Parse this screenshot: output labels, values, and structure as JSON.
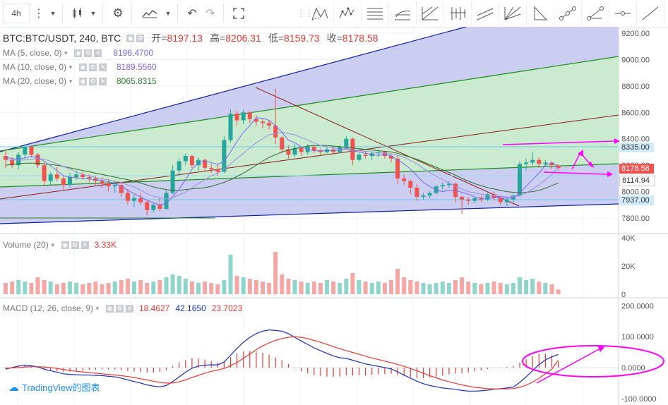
{
  "toolbar": {
    "interval": "4h",
    "undo_icon": "undo-icon",
    "redo_icon": "redo-icon"
  },
  "drawing_tools": [
    "pattern-icon",
    "elliott-icon",
    "fib-lines-icon",
    "fib-fan-icon",
    "pitchfork-icon",
    "bars-icon",
    "parallel-channel-icon",
    "gann-fan-icon",
    "triangle-icon",
    "path-icon",
    "trend-angle-icon",
    "horizontal-ray-icon",
    "trend-line-icon"
  ],
  "header": {
    "symbol": "BTC:BTC/USDT, 240, BTC",
    "open_label": "开=",
    "open": "8197.13",
    "high_label": "高=",
    "high": "8206.31",
    "low_label": "低=",
    "low": "8159.73",
    "close_label": "收=",
    "close": "8178.58"
  },
  "indicators": {
    "ma5": {
      "label": "MA (5, close, 0)",
      "value": "8196.4700",
      "color": "#7b68ee"
    },
    "ma10": {
      "label": "MA (10, close, 0)",
      "value": "8189.5560",
      "color": "#7b68ee"
    },
    "ma20": {
      "label": "MA (20, close, 0)",
      "value": "8065.8315",
      "color": "#2e7d32"
    },
    "volume": {
      "label": "Volume (20)",
      "value": "3.33K",
      "color": "#e53935"
    },
    "macd": {
      "label": "MACD (12, 26, close, 9)",
      "hist": "18.4627",
      "macd": "42.1650",
      "signal": "23.7023"
    }
  },
  "price_tags": {
    "upper": "8335.00",
    "current": "8178.58",
    "middle": "8114.94",
    "lower": "7937.00"
  },
  "colors": {
    "up": "#26a69a",
    "down": "#ef5350",
    "channel_blue": "#0d1fa0",
    "channel_green": "#1b8a1b",
    "trend_brown": "#8b1a1a",
    "annotation": "#ff00ff",
    "tag_upper": "#d0ecf8",
    "tag_current": "#ef5350"
  },
  "watermark": "TradingView的图表",
  "chart_data": [
    {
      "type": "candlestick",
      "title": "BTC:BTC/USDT, 240, BTC",
      "ylim": [
        7720,
        9260
      ],
      "y_ticks": [
        7800,
        8000,
        8200,
        8400,
        8600,
        8800,
        9000,
        9200
      ],
      "candles": [
        [
          8270,
          8320,
          8180,
          8240
        ],
        [
          8240,
          8260,
          8180,
          8200
        ],
        [
          8200,
          8300,
          8170,
          8280
        ],
        [
          8280,
          8360,
          8250,
          8340
        ],
        [
          8340,
          8350,
          8260,
          8280
        ],
        [
          8280,
          8290,
          8180,
          8200
        ],
        [
          8200,
          8220,
          8050,
          8080
        ],
        [
          8080,
          8150,
          8050,
          8130
        ],
        [
          8130,
          8190,
          8080,
          8100
        ],
        [
          8100,
          8120,
          8010,
          8050
        ],
        [
          8050,
          8140,
          8030,
          8110
        ],
        [
          8110,
          8160,
          8090,
          8130
        ],
        [
          8130,
          8150,
          8090,
          8110
        ],
        [
          8110,
          8130,
          8070,
          8100
        ],
        [
          8100,
          8120,
          8050,
          8080
        ],
        [
          8080,
          8110,
          8030,
          8060
        ],
        [
          8060,
          8090,
          8000,
          8040
        ],
        [
          8040,
          8080,
          7990,
          8050
        ],
        [
          8050,
          8070,
          7960,
          7990
        ],
        [
          7990,
          8020,
          7900,
          7930
        ],
        [
          7930,
          7980,
          7880,
          7950
        ],
        [
          7950,
          7990,
          7900,
          7920
        ],
        [
          7920,
          7940,
          7820,
          7860
        ],
        [
          7860,
          7920,
          7840,
          7900
        ],
        [
          7900,
          7950,
          7850,
          7870
        ],
        [
          7870,
          8010,
          7860,
          7990
        ],
        [
          7990,
          8200,
          7980,
          8160
        ],
        [
          8160,
          8250,
          8120,
          8230
        ],
        [
          8230,
          8290,
          8200,
          8270
        ],
        [
          8270,
          8280,
          8180,
          8200
        ],
        [
          8200,
          8260,
          8160,
          8240
        ],
        [
          8240,
          8250,
          8160,
          8180
        ],
        [
          8180,
          8210,
          8140,
          8170
        ],
        [
          8170,
          8200,
          8120,
          8150
        ],
        [
          8150,
          8420,
          8140,
          8390
        ],
        [
          8390,
          8620,
          8370,
          8590
        ],
        [
          8590,
          8610,
          8500,
          8540
        ],
        [
          8540,
          8620,
          8510,
          8600
        ],
        [
          8600,
          8610,
          8520,
          8550
        ],
        [
          8550,
          8580,
          8500,
          8530
        ],
        [
          8530,
          8550,
          8480,
          8520
        ],
        [
          8520,
          8540,
          8470,
          8500
        ],
        [
          8500,
          8780,
          8360,
          8410
        ],
        [
          8410,
          8420,
          8290,
          8320
        ],
        [
          8320,
          8350,
          8250,
          8280
        ],
        [
          8280,
          8360,
          8260,
          8330
        ],
        [
          8330,
          8340,
          8270,
          8300
        ],
        [
          8300,
          8360,
          8280,
          8340
        ],
        [
          8340,
          8350,
          8290,
          8310
        ],
        [
          8310,
          8330,
          8280,
          8300
        ],
        [
          8300,
          8340,
          8290,
          8320
        ],
        [
          8320,
          8340,
          8290,
          8300
        ],
        [
          8300,
          8350,
          8290,
          8340
        ],
        [
          8340,
          8420,
          8320,
          8400
        ],
        [
          8400,
          8410,
          8200,
          8240
        ],
        [
          8240,
          8300,
          8230,
          8280
        ],
        [
          8280,
          8310,
          8250,
          8270
        ],
        [
          8270,
          8300,
          8240,
          8290
        ],
        [
          8290,
          8320,
          8260,
          8300
        ],
        [
          8300,
          8310,
          8250,
          8270
        ],
        [
          8270,
          8290,
          8220,
          8250
        ],
        [
          8250,
          8280,
          8060,
          8100
        ],
        [
          8100,
          8130,
          8050,
          8080
        ],
        [
          8080,
          8090,
          7980,
          8030
        ],
        [
          8030,
          8060,
          7930,
          7960
        ],
        [
          7960,
          7990,
          7940,
          7970
        ],
        [
          7970,
          8000,
          7950,
          7990
        ],
        [
          7990,
          8050,
          7980,
          8040
        ],
        [
          8040,
          8070,
          8010,
          8050
        ],
        [
          8050,
          8080,
          8030,
          8060
        ],
        [
          8060,
          8070,
          7920,
          7960
        ],
        [
          7960,
          7970,
          7830,
          7940
        ],
        [
          7940,
          7960,
          7900,
          7930
        ],
        [
          7930,
          7960,
          7910,
          7950
        ],
        [
          7950,
          7970,
          7920,
          7940
        ],
        [
          7940,
          7990,
          7930,
          7980
        ],
        [
          7980,
          8000,
          7930,
          7950
        ],
        [
          7950,
          7970,
          7900,
          7920
        ],
        [
          7920,
          7960,
          7890,
          7940
        ],
        [
          7940,
          7980,
          7920,
          7970
        ],
        [
          7970,
          8230,
          7960,
          8210
        ],
        [
          8210,
          8250,
          8160,
          8220
        ],
        [
          8220,
          8300,
          8200,
          8240
        ],
        [
          8240,
          8260,
          8180,
          8210
        ],
        [
          8210,
          8240,
          8190,
          8220
        ],
        [
          8220,
          8230,
          8170,
          8200
        ],
        [
          8197.13,
          8206.31,
          8159.73,
          8178.58
        ]
      ],
      "ma5": [
        8260,
        8250,
        8245,
        8255,
        8265,
        8260,
        8230,
        8195,
        8160,
        8120,
        8110,
        8105,
        8100,
        8095,
        8090,
        8085,
        8075,
        8060,
        8040,
        8010,
        7985,
        7960,
        7935,
        7915,
        7900,
        7910,
        7960,
        8020,
        8090,
        8170,
        8220,
        8230,
        8220,
        8205,
        8230,
        8300,
        8380,
        8450,
        8500,
        8560,
        8555,
        8540,
        8500,
        8450,
        8390,
        8370,
        8340,
        8320,
        8310,
        8310,
        8310,
        8310,
        8315,
        8330,
        8310,
        8300,
        8290,
        8280,
        8275,
        8280,
        8270,
        8240,
        8210,
        8170,
        8120,
        8070,
        8040,
        8010,
        8000,
        8010,
        8010,
        7995,
        7980,
        7960,
        7950,
        7950,
        7955,
        7955,
        7950,
        7950,
        7990,
        8040,
        8090,
        8140,
        8200,
        8215,
        8196.47
      ],
      "ma10": [
        8240,
        8240,
        8240,
        8240,
        8245,
        8250,
        8245,
        8230,
        8210,
        8190,
        8170,
        8150,
        8130,
        8120,
        8105,
        8095,
        8090,
        8080,
        8070,
        8050,
        8035,
        8010,
        7985,
        7965,
        7955,
        7945,
        7955,
        7975,
        7995,
        8030,
        8060,
        8090,
        8120,
        8140,
        8170,
        8210,
        8250,
        8290,
        8330,
        8370,
        8400,
        8430,
        8440,
        8450,
        8440,
        8430,
        8410,
        8390,
        8370,
        8350,
        8340,
        8330,
        8320,
        8320,
        8315,
        8310,
        8305,
        8300,
        8295,
        8290,
        8285,
        8275,
        8260,
        8235,
        8210,
        8175,
        8145,
        8115,
        8090,
        8065,
        8040,
        8020,
        8000,
        7990,
        7980,
        7975,
        7970,
        7965,
        7960,
        7960,
        7970,
        7990,
        8020,
        8050,
        8090,
        8130,
        8189.56
      ],
      "ma20": [
        8200,
        8205,
        8210,
        8215,
        8215,
        8215,
        8210,
        8205,
        8200,
        8190,
        8180,
        8170,
        8160,
        8150,
        8140,
        8130,
        8120,
        8110,
        8100,
        8090,
        8080,
        8065,
        8050,
        8035,
        8025,
        8015,
        8010,
        8010,
        8015,
        8020,
        8025,
        8030,
        8040,
        8055,
        8070,
        8090,
        8115,
        8140,
        8170,
        8200,
        8230,
        8260,
        8280,
        8300,
        8315,
        8325,
        8335,
        8345,
        8350,
        8350,
        8350,
        8345,
        8340,
        8335,
        8330,
        8325,
        8320,
        8315,
        8310,
        8305,
        8300,
        8290,
        8275,
        8260,
        8245,
        8225,
        8205,
        8185,
        8165,
        8145,
        8125,
        8100,
        8080,
        8060,
        8045,
        8030,
        8020,
        8010,
        8000,
        7995,
        7990,
        7995,
        8000,
        8010,
        8025,
        8045,
        8065.83
      ]
    },
    {
      "type": "bar",
      "title": "Volume (20)",
      "ylim": [
        0,
        45000
      ],
      "y_ticks": [
        "0",
        "20K",
        "40K"
      ],
      "values": [
        8,
        9,
        10,
        9,
        8,
        12,
        10,
        9,
        7,
        8,
        9,
        8,
        7,
        8,
        9,
        7,
        8,
        9,
        10,
        11,
        9,
        10,
        8,
        9,
        10,
        12,
        14,
        13,
        11,
        9,
        8,
        9,
        8,
        7,
        10,
        28,
        13,
        12,
        11,
        10,
        9,
        8,
        30,
        14,
        11,
        10,
        9,
        8,
        9,
        8,
        10,
        9,
        8,
        11,
        15,
        10,
        9,
        8,
        9,
        8,
        10,
        18,
        12,
        10,
        9,
        8,
        7,
        8,
        9,
        8,
        10,
        12,
        9,
        8,
        7,
        8,
        9,
        8,
        7,
        8,
        12,
        10,
        11,
        9,
        8,
        7,
        3.33
      ]
    },
    {
      "type": "line",
      "title": "MACD (12, 26, close, 9)",
      "ylim": [
        -115,
        215
      ],
      "y_ticks": [
        "-100.0000",
        "0.0000",
        "100.0000",
        "200.0000"
      ],
      "series": [
        {
          "name": "MACD",
          "values": [
            -5,
            0,
            5,
            8,
            6,
            2,
            -5,
            -10,
            -15,
            -20,
            -22,
            -23,
            -24,
            -24,
            -25,
            -26,
            -28,
            -30,
            -34,
            -40,
            -45,
            -50,
            -56,
            -60,
            -62,
            -58,
            -45,
            -30,
            -15,
            -2,
            5,
            8,
            9,
            9,
            18,
            40,
            62,
            82,
            98,
            110,
            118,
            122,
            120,
            118,
            110,
            98,
            86,
            75,
            64,
            55,
            46,
            38,
            32,
            30,
            24,
            18,
            12,
            8,
            4,
            0,
            -4,
            -14,
            -24,
            -34,
            -44,
            -52,
            -58,
            -62,
            -66,
            -68,
            -70,
            -74,
            -76,
            -76,
            -75,
            -73,
            -70,
            -68,
            -66,
            -63,
            -48,
            -30,
            -10,
            10,
            25,
            35,
            42.165
          ]
        },
        {
          "name": "Signal",
          "values": [
            -2,
            -1,
            0,
            2,
            3,
            3,
            2,
            0,
            -3,
            -6,
            -9,
            -12,
            -14,
            -16,
            -18,
            -20,
            -22,
            -24,
            -26,
            -29,
            -32,
            -36,
            -40,
            -44,
            -48,
            -50,
            -50,
            -46,
            -40,
            -32,
            -25,
            -18,
            -12,
            -8,
            -3,
            6,
            17,
            30,
            44,
            58,
            70,
            80,
            88,
            94,
            98,
            100,
            98,
            94,
            88,
            82,
            75,
            68,
            61,
            55,
            49,
            43,
            37,
            31,
            26,
            21,
            16,
            10,
            4,
            -3,
            -10,
            -18,
            -26,
            -33,
            -40,
            -46,
            -51,
            -56,
            -60,
            -64,
            -66,
            -68,
            -69,
            -69,
            -69,
            -68,
            -64,
            -57,
            -47,
            -35,
            -20,
            -5,
            23.7023
          ]
        },
        {
          "name": "Histogram",
          "values": [
            -3,
            1,
            5,
            6,
            3,
            -1,
            -7,
            -10,
            -12,
            -14,
            -13,
            -11,
            -10,
            -8,
            -7,
            -6,
            -6,
            -6,
            -8,
            -11,
            -13,
            -14,
            -16,
            -16,
            -14,
            -8,
            5,
            16,
            25,
            30,
            30,
            26,
            21,
            17,
            21,
            34,
            45,
            52,
            54,
            52,
            48,
            42,
            32,
            24,
            12,
            -2,
            -12,
            -19,
            -24,
            -27,
            -29,
            -30,
            -29,
            -25,
            -25,
            -25,
            -25,
            -23,
            -22,
            -21,
            -20,
            -24,
            -28,
            -31,
            -34,
            -34,
            -32,
            -29,
            -26,
            -22,
            -19,
            -18,
            -16,
            -12,
            -9,
            -5,
            -1,
            1,
            3,
            5,
            16,
            27,
            37,
            45,
            45,
            40,
            18.4627
          ]
        }
      ]
    }
  ]
}
